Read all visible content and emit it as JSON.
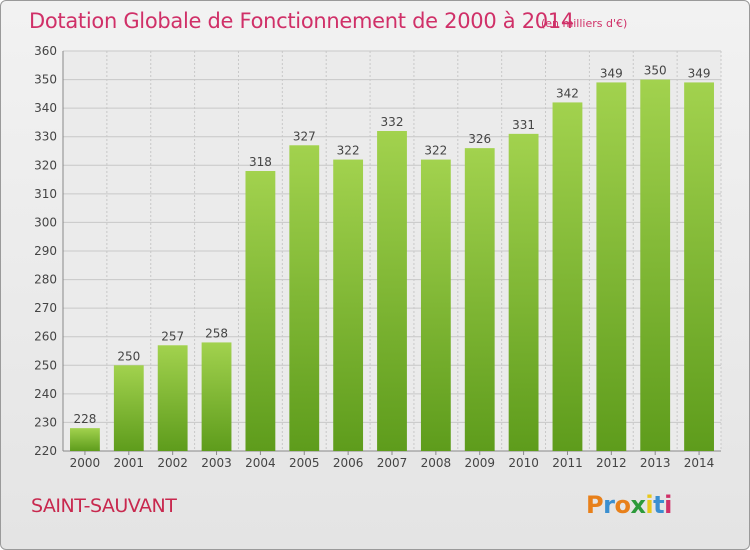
{
  "header": {
    "title": "Dotation Globale de Fonctionnement de 2000 à 2014",
    "unit": "(en milliers d'€)"
  },
  "footer": {
    "commune": "SAINT-SAUVANT",
    "logo_text": "Proxiti"
  },
  "colors": {
    "title": "#d03068",
    "bar_top": "#a2d24e",
    "bar_bottom": "#5e9c1c",
    "grid": "#c8c8c8",
    "text": "#444444"
  },
  "chart_data": {
    "type": "bar",
    "title": "Dotation Globale de Fonctionnement de 2000 à 2014",
    "subtitle": "(en milliers d'€)",
    "xlabel": "",
    "ylabel": "",
    "categories": [
      "2000",
      "2001",
      "2002",
      "2003",
      "2004",
      "2005",
      "2006",
      "2007",
      "2008",
      "2009",
      "2010",
      "2011",
      "2012",
      "2013",
      "2014"
    ],
    "values": [
      228,
      250,
      257,
      258,
      318,
      327,
      322,
      332,
      322,
      326,
      331,
      342,
      349,
      350,
      349
    ],
    "ylim": [
      220,
      360
    ],
    "yticks": [
      220,
      230,
      240,
      250,
      260,
      270,
      280,
      290,
      300,
      310,
      320,
      330,
      340,
      350,
      360
    ],
    "grid": true,
    "legend": "none"
  }
}
